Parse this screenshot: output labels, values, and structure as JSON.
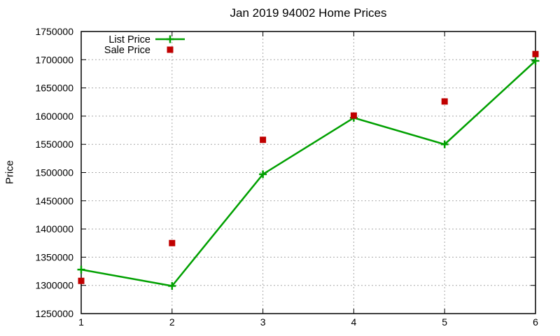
{
  "chart_data": {
    "type": "line",
    "title": "Jan 2019 94002 Home Prices",
    "xlabel": "",
    "ylabel": "Price",
    "x": [
      1,
      2,
      3,
      4,
      5,
      6
    ],
    "xticks": [
      1,
      2,
      3,
      4,
      5,
      6
    ],
    "yticks": [
      1250000,
      1300000,
      1350000,
      1400000,
      1450000,
      1500000,
      1550000,
      1600000,
      1650000,
      1700000,
      1750000
    ],
    "xlim": [
      1,
      6
    ],
    "ylim": [
      1250000,
      1750000
    ],
    "grid": true,
    "legend_position": "top-left",
    "series": [
      {
        "name": "List Price",
        "style": "line",
        "marker": "plus",
        "color": "#00a000",
        "values": [
          1328000,
          1299000,
          1497000,
          1597000,
          1550000,
          1698000
        ]
      },
      {
        "name": "Sale Price",
        "style": "points",
        "marker": "square",
        "color": "#c00000",
        "values": [
          1308000,
          1375000,
          1558000,
          1601000,
          1626000,
          1710000
        ]
      }
    ],
    "colors": {
      "grid": "#a8a8a8",
      "axis": "#000000",
      "text": "#000000",
      "background": "#ffffff"
    }
  }
}
